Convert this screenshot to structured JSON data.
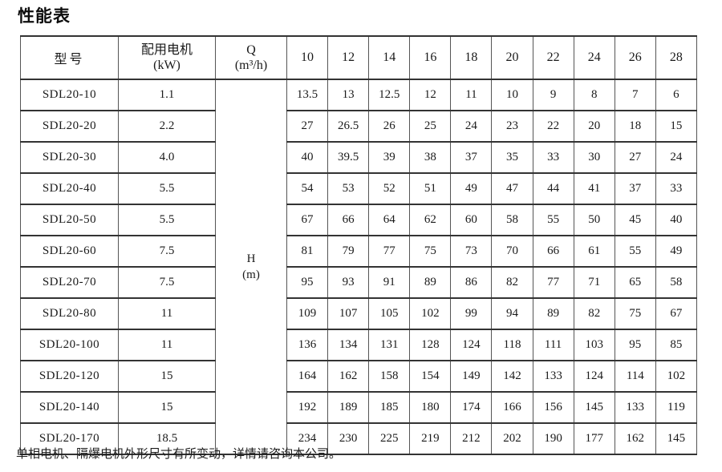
{
  "page": {
    "title": "性能表",
    "footnote": "单相电机、隔爆电机外形尺寸有所变动，详情请咨询本公司。"
  },
  "table": {
    "header": {
      "model_label": "型号",
      "motor_label_line1": "配用电机",
      "motor_label_line2": "(kW)",
      "flow_label_line1": "Q",
      "flow_label_line2": "(m³/h)",
      "flow_values": [
        "10",
        "12",
        "14",
        "16",
        "18",
        "20",
        "22",
        "24",
        "26",
        "28"
      ]
    },
    "head_unit": {
      "line1": "H",
      "line2": "(m)"
    },
    "rows": [
      {
        "model": "SDL20-10",
        "power": "1.1",
        "heads": [
          "13.5",
          "13",
          "12.5",
          "12",
          "11",
          "10",
          "9",
          "8",
          "7",
          "6"
        ]
      },
      {
        "model": "SDL20-20",
        "power": "2.2",
        "heads": [
          "27",
          "26.5",
          "26",
          "25",
          "24",
          "23",
          "22",
          "20",
          "18",
          "15"
        ]
      },
      {
        "model": "SDL20-30",
        "power": "4.0",
        "heads": [
          "40",
          "39.5",
          "39",
          "38",
          "37",
          "35",
          "33",
          "30",
          "27",
          "24"
        ]
      },
      {
        "model": "SDL20-40",
        "power": "5.5",
        "heads": [
          "54",
          "53",
          "52",
          "51",
          "49",
          "47",
          "44",
          "41",
          "37",
          "33"
        ]
      },
      {
        "model": "SDL20-50",
        "power": "5.5",
        "heads": [
          "67",
          "66",
          "64",
          "62",
          "60",
          "58",
          "55",
          "50",
          "45",
          "40"
        ]
      },
      {
        "model": "SDL20-60",
        "power": "7.5",
        "heads": [
          "81",
          "79",
          "77",
          "75",
          "73",
          "70",
          "66",
          "61",
          "55",
          "49"
        ]
      },
      {
        "model": "SDL20-70",
        "power": "7.5",
        "heads": [
          "95",
          "93",
          "91",
          "89",
          "86",
          "82",
          "77",
          "71",
          "65",
          "58"
        ]
      },
      {
        "model": "SDL20-80",
        "power": "11",
        "heads": [
          "109",
          "107",
          "105",
          "102",
          "99",
          "94",
          "89",
          "82",
          "75",
          "67"
        ]
      },
      {
        "model": "SDL20-100",
        "power": "11",
        "heads": [
          "136",
          "134",
          "131",
          "128",
          "124",
          "118",
          "111",
          "103",
          "95",
          "85"
        ]
      },
      {
        "model": "SDL20-120",
        "power": "15",
        "heads": [
          "164",
          "162",
          "158",
          "154",
          "149",
          "142",
          "133",
          "124",
          "114",
          "102"
        ]
      },
      {
        "model": "SDL20-140",
        "power": "15",
        "heads": [
          "192",
          "189",
          "185",
          "180",
          "174",
          "166",
          "156",
          "145",
          "133",
          "119"
        ]
      },
      {
        "model": "SDL20-170",
        "power": "18.5",
        "heads": [
          "234",
          "230",
          "225",
          "219",
          "212",
          "202",
          "190",
          "177",
          "162",
          "145"
        ]
      }
    ]
  }
}
